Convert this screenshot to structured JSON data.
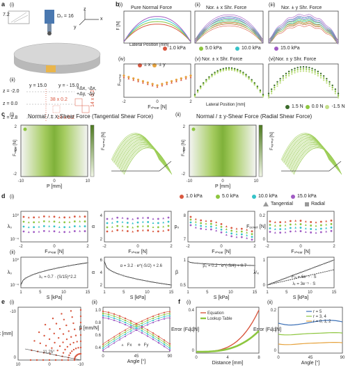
{
  "panel_a": {
    "label": "a",
    "sub_i": "(i)",
    "sub_ii": "(ii)",
    "dim_72": "7.2",
    "dim_d0": "D₀ = 16",
    "axis_x": "x",
    "axis_y": "y",
    "axis_z": "z",
    "z_labels": [
      "z = -2.0",
      "z = 0.0",
      "z = 2.8"
    ],
    "y_labels": [
      "y = 15.0",
      "y = - 15.0"
    ],
    "grid_labels": [
      "38 x 0.2",
      "14 x 0.2",
      "14 x 0.2"
    ],
    "delta_label": "+Δx, -Δx,",
    "delta_label2": "+Δy, -Δy",
    "dot": "•"
  },
  "panel_b": {
    "label": "b",
    "titles": [
      "Pure Normal Force",
      "Nor. ± x Shr. Force",
      "Nor. ± y Shr. Force",
      "",
      "Nor. ± x Shr. Force",
      "Nor. ± y Shr. Force"
    ],
    "subs": [
      "(i)",
      "(ii)",
      "(iii)",
      "(iv)",
      "(v)",
      "(vi)"
    ],
    "ylabel_top": "F [N]",
    "xlabel_top": "Lateral Position [mm]",
    "xlabel_iv": "Fₛₕₑₐᵣ [N]",
    "ylabel_iv": "Fₙₒᵣₘₐₗ",
    "pressure_legend": [
      "1.0 kPa",
      "5.0 kPa",
      "10.0 kPa",
      "15.0 kPa"
    ],
    "pressure_colors": [
      "#d9573f",
      "#8dc63f",
      "#35c3c8",
      "#a05bc4"
    ],
    "shear_legend": [
      "1.5 N",
      "0.0 N",
      "-1.5 N"
    ],
    "pm_legend": [
      "± x",
      "± y"
    ],
    "ticks_x": [
      "-10",
      "0",
      "10"
    ],
    "ticks_y": [
      "0",
      "2",
      "4"
    ],
    "ticks_iv_x": [
      "-2",
      "0",
      "2"
    ]
  },
  "panel_c": {
    "label": "c",
    "sub_i": "(i)",
    "sub_ii": "(ii)",
    "title_i": "Normal / ± x-Shear Force (Tangential Shear Force)",
    "title_ii": "Normal / ± y-Shear Force (Radial Shear Force)",
    "ylabel": "Fₛₕₑₐᵣ [N]",
    "xlabel": "P [mm]",
    "cbar": "Fₙₒᵣₘₐₗ [N]",
    "ticks_y": [
      "2",
      "0",
      "-2"
    ],
    "ticks_x": [
      "-10",
      "0",
      "10"
    ],
    "cbar_ticks": [
      "4",
      "0"
    ],
    "three_d_x": "P [mm]",
    "three_d_y": "Fₛₕₑₐᵣ [N]",
    "three_d_z": "Fₙₒᵣₘₐₗ",
    "three_d_ticks_x": [
      "-10",
      "0",
      "10"
    ],
    "three_d_ticks_y": [
      "-2",
      "0",
      "2"
    ]
  },
  "panel_d": {
    "label": "d",
    "sub_i": "(i)",
    "sub_ii": "(ii)",
    "legend_pressures": [
      "1.0 kPa",
      "5.0 kPa",
      "10.0 kPa",
      "15.0 kPa"
    ],
    "legend_types": [
      "Tangential",
      "Radial"
    ],
    "row1_ylabels": [
      "λ₀",
      "α",
      "p₀",
      "Fₒₒₛₑₜ [N]"
    ],
    "row1_xlabel": "Fₛₕₑₐᵣ [N]",
    "row1_yticks": [
      [
        "10⁰",
        "10⁻⁴"
      ],
      [
        "4",
        "2"
      ],
      [
        "8",
        "7"
      ],
      [
        "0.2",
        "0"
      ]
    ],
    "row1_xticks": [
      "-2",
      "0",
      "2"
    ],
    "row2_ylabels": [
      "λ₀",
      "α",
      "β",
      "λʳₓ"
    ],
    "row2_xlabel": "S [kPa]",
    "row2_xticks": [
      "1",
      "5",
      "10",
      "15"
    ],
    "row2_equations": [
      "λ₀ = 0.7 · (S/15)^2.2",
      "α = 3.2 · e^(-S/2) + 2.6",
      "β₀ = 0.2 · e^(-S/4) + 0.7",
      "Fₗₒ = 6e⁻⁵ · S"
    ],
    "row2_eq4b": "λᵣ = 3e⁻⁵ · S",
    "row2_yticks": [
      [
        "10⁰",
        "10⁻⁴"
      ],
      [
        "6",
        "4",
        "2"
      ],
      [
        "1",
        "0.5"
      ],
      [
        "1",
        "0"
      ]
    ],
    "beta_unit": "β [mm/N]"
  },
  "panel_e": {
    "label": "e",
    "sub_i": "(i)",
    "sub_ii": "(ii)",
    "ylabel_i": "x [mm]",
    "xlabel_i": "y [mm]",
    "angle_label": "11.25°",
    "ticks_i_y": [
      "-10",
      "0"
    ],
    "ticks_i_x": [
      "10",
      "0",
      "-10"
    ],
    "ylabel_ii": "β [mm/N]",
    "xlabel_ii": "Angle [°]",
    "ticks_ii_y": [
      "1.0",
      "0.8",
      "0.6",
      "0.4"
    ],
    "ticks_ii_x": [
      "0",
      "45",
      "90"
    ],
    "legend_fx": "Fx",
    "legend_fy": "Fy"
  },
  "panel_f": {
    "label": "f",
    "sub_i": "(i)",
    "sub_ii": "(ii)",
    "ylabel_i": "Error (Fₙ) [N]",
    "xlabel_i": "Distance [mm]",
    "legend_i": [
      "Equation",
      "Lookup Table"
    ],
    "legend_i_colors": [
      "#d9573f",
      "#8dc63f"
    ],
    "ticks_i_x": [
      "0",
      "4",
      "8"
    ],
    "ticks_i_y": [
      "0",
      "0.2",
      "0.4"
    ],
    "ylabel_ii": "Error (Fₙ) [N]",
    "xlabel_ii": "Angle [°]",
    "legend_ii": [
      "r = 5",
      "r = 3, 4",
      "r = 0, 1, 2"
    ],
    "legend_ii_colors": [
      "#3b6fb6",
      "#8dc63f",
      "#e6a23c"
    ],
    "ticks_ii_x": [
      "0",
      "45",
      "90"
    ],
    "ticks_ii_y": [
      "0",
      "0.1",
      "0.2"
    ]
  }
}
